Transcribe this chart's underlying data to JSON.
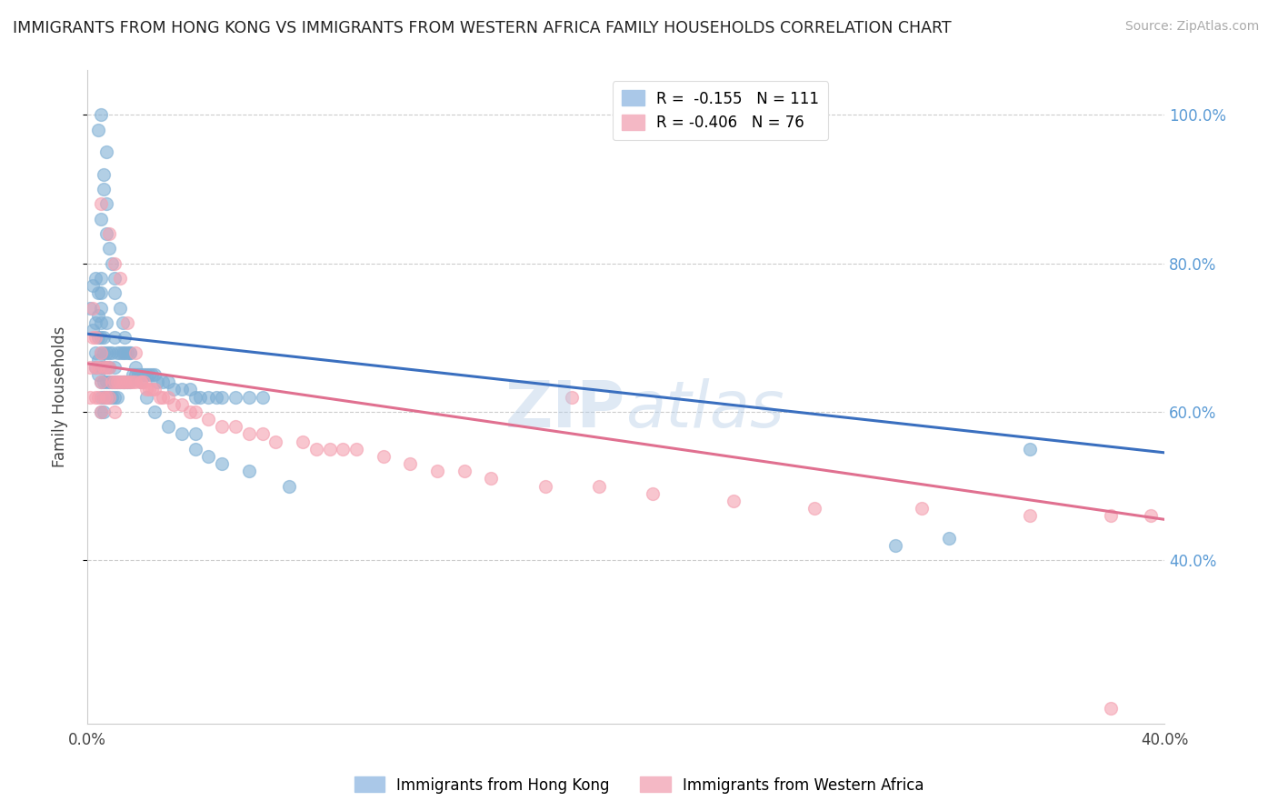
{
  "title": "IMMIGRANTS FROM HONG KONG VS IMMIGRANTS FROM WESTERN AFRICA FAMILY HOUSEHOLDS CORRELATION CHART",
  "source": "Source: ZipAtlas.com",
  "ylabel": "Family Households",
  "xlim": [
    0.0,
    0.4
  ],
  "ylim": [
    0.18,
    1.06
  ],
  "yticks": [
    0.4,
    0.6,
    0.8,
    1.0
  ],
  "ytick_labels": [
    "40.0%",
    "60.0%",
    "80.0%",
    "100.0%"
  ],
  "xticks": [
    0.0,
    0.05,
    0.1,
    0.15,
    0.2,
    0.25,
    0.3,
    0.35,
    0.4
  ],
  "xtick_labels": [
    "0.0%",
    "",
    "",
    "",
    "",
    "",
    "",
    "",
    "40.0%"
  ],
  "series1_color": "#7fafd4",
  "series2_color": "#f4a0b0",
  "line1_color": "#3a6fbf",
  "line2_color": "#e07090",
  "R1": -0.155,
  "N1": 111,
  "R2": -0.406,
  "N2": 76,
  "legend_label1": "Immigrants from Hong Kong",
  "legend_label2": "Immigrants from Western Africa",
  "watermark": "ZIPAtlas",
  "line1_x0": 0.0,
  "line1_y0": 0.705,
  "line1_x1": 0.4,
  "line1_y1": 0.545,
  "line2_x0": 0.0,
  "line2_y0": 0.665,
  "line2_x1": 0.4,
  "line2_y1": 0.455,
  "hk_x": [
    0.001,
    0.002,
    0.002,
    0.003,
    0.003,
    0.003,
    0.003,
    0.004,
    0.004,
    0.004,
    0.004,
    0.004,
    0.005,
    0.005,
    0.005,
    0.005,
    0.005,
    0.005,
    0.005,
    0.005,
    0.005,
    0.005,
    0.006,
    0.006,
    0.006,
    0.006,
    0.006,
    0.006,
    0.007,
    0.007,
    0.007,
    0.007,
    0.007,
    0.008,
    0.008,
    0.008,
    0.008,
    0.009,
    0.009,
    0.009,
    0.01,
    0.01,
    0.01,
    0.01,
    0.011,
    0.011,
    0.011,
    0.012,
    0.012,
    0.013,
    0.013,
    0.014,
    0.014,
    0.015,
    0.015,
    0.016,
    0.016,
    0.017,
    0.018,
    0.019,
    0.02,
    0.021,
    0.022,
    0.023,
    0.024,
    0.025,
    0.026,
    0.028,
    0.03,
    0.032,
    0.035,
    0.038,
    0.04,
    0.042,
    0.045,
    0.048,
    0.05,
    0.055,
    0.06,
    0.065,
    0.005,
    0.006,
    0.007,
    0.004,
    0.005,
    0.006,
    0.007,
    0.007,
    0.008,
    0.009,
    0.01,
    0.01,
    0.012,
    0.013,
    0.014,
    0.016,
    0.018,
    0.02,
    0.022,
    0.025,
    0.03,
    0.035,
    0.04,
    0.04,
    0.045,
    0.05,
    0.06,
    0.075,
    0.3,
    0.32,
    0.35
  ],
  "hk_y": [
    0.74,
    0.71,
    0.77,
    0.66,
    0.68,
    0.72,
    0.78,
    0.65,
    0.67,
    0.7,
    0.73,
    0.76,
    0.6,
    0.62,
    0.64,
    0.66,
    0.68,
    0.7,
    0.72,
    0.74,
    0.76,
    0.78,
    0.6,
    0.62,
    0.64,
    0.66,
    0.68,
    0.7,
    0.62,
    0.64,
    0.66,
    0.68,
    0.72,
    0.62,
    0.64,
    0.66,
    0.68,
    0.62,
    0.64,
    0.68,
    0.62,
    0.64,
    0.66,
    0.7,
    0.62,
    0.64,
    0.68,
    0.64,
    0.68,
    0.64,
    0.68,
    0.64,
    0.68,
    0.64,
    0.68,
    0.64,
    0.68,
    0.65,
    0.65,
    0.65,
    0.65,
    0.65,
    0.65,
    0.65,
    0.65,
    0.65,
    0.64,
    0.64,
    0.64,
    0.63,
    0.63,
    0.63,
    0.62,
    0.62,
    0.62,
    0.62,
    0.62,
    0.62,
    0.62,
    0.62,
    0.86,
    0.9,
    0.95,
    0.98,
    1.0,
    0.92,
    0.88,
    0.84,
    0.82,
    0.8,
    0.78,
    0.76,
    0.74,
    0.72,
    0.7,
    0.68,
    0.66,
    0.64,
    0.62,
    0.6,
    0.58,
    0.57,
    0.57,
    0.55,
    0.54,
    0.53,
    0.52,
    0.5,
    0.42,
    0.43,
    0.55
  ],
  "wa_x": [
    0.001,
    0.001,
    0.002,
    0.002,
    0.003,
    0.003,
    0.003,
    0.004,
    0.004,
    0.005,
    0.005,
    0.005,
    0.006,
    0.006,
    0.007,
    0.007,
    0.008,
    0.008,
    0.009,
    0.01,
    0.01,
    0.011,
    0.012,
    0.013,
    0.014,
    0.015,
    0.016,
    0.017,
    0.018,
    0.02,
    0.021,
    0.022,
    0.023,
    0.024,
    0.025,
    0.027,
    0.028,
    0.03,
    0.032,
    0.035,
    0.038,
    0.04,
    0.045,
    0.05,
    0.055,
    0.06,
    0.065,
    0.07,
    0.08,
    0.085,
    0.09,
    0.095,
    0.1,
    0.11,
    0.12,
    0.13,
    0.14,
    0.15,
    0.17,
    0.19,
    0.21,
    0.24,
    0.27,
    0.31,
    0.35,
    0.38,
    0.395,
    0.005,
    0.008,
    0.01,
    0.012,
    0.015,
    0.018,
    0.02,
    0.18,
    0.38
  ],
  "wa_y": [
    0.62,
    0.66,
    0.7,
    0.74,
    0.62,
    0.66,
    0.7,
    0.62,
    0.66,
    0.6,
    0.64,
    0.68,
    0.62,
    0.66,
    0.62,
    0.66,
    0.62,
    0.66,
    0.64,
    0.6,
    0.64,
    0.64,
    0.64,
    0.64,
    0.64,
    0.64,
    0.64,
    0.64,
    0.64,
    0.64,
    0.64,
    0.63,
    0.63,
    0.63,
    0.63,
    0.62,
    0.62,
    0.62,
    0.61,
    0.61,
    0.6,
    0.6,
    0.59,
    0.58,
    0.58,
    0.57,
    0.57,
    0.56,
    0.56,
    0.55,
    0.55,
    0.55,
    0.55,
    0.54,
    0.53,
    0.52,
    0.52,
    0.51,
    0.5,
    0.5,
    0.49,
    0.48,
    0.47,
    0.47,
    0.46,
    0.46,
    0.46,
    0.88,
    0.84,
    0.8,
    0.78,
    0.72,
    0.68,
    0.64,
    0.62,
    0.2
  ]
}
